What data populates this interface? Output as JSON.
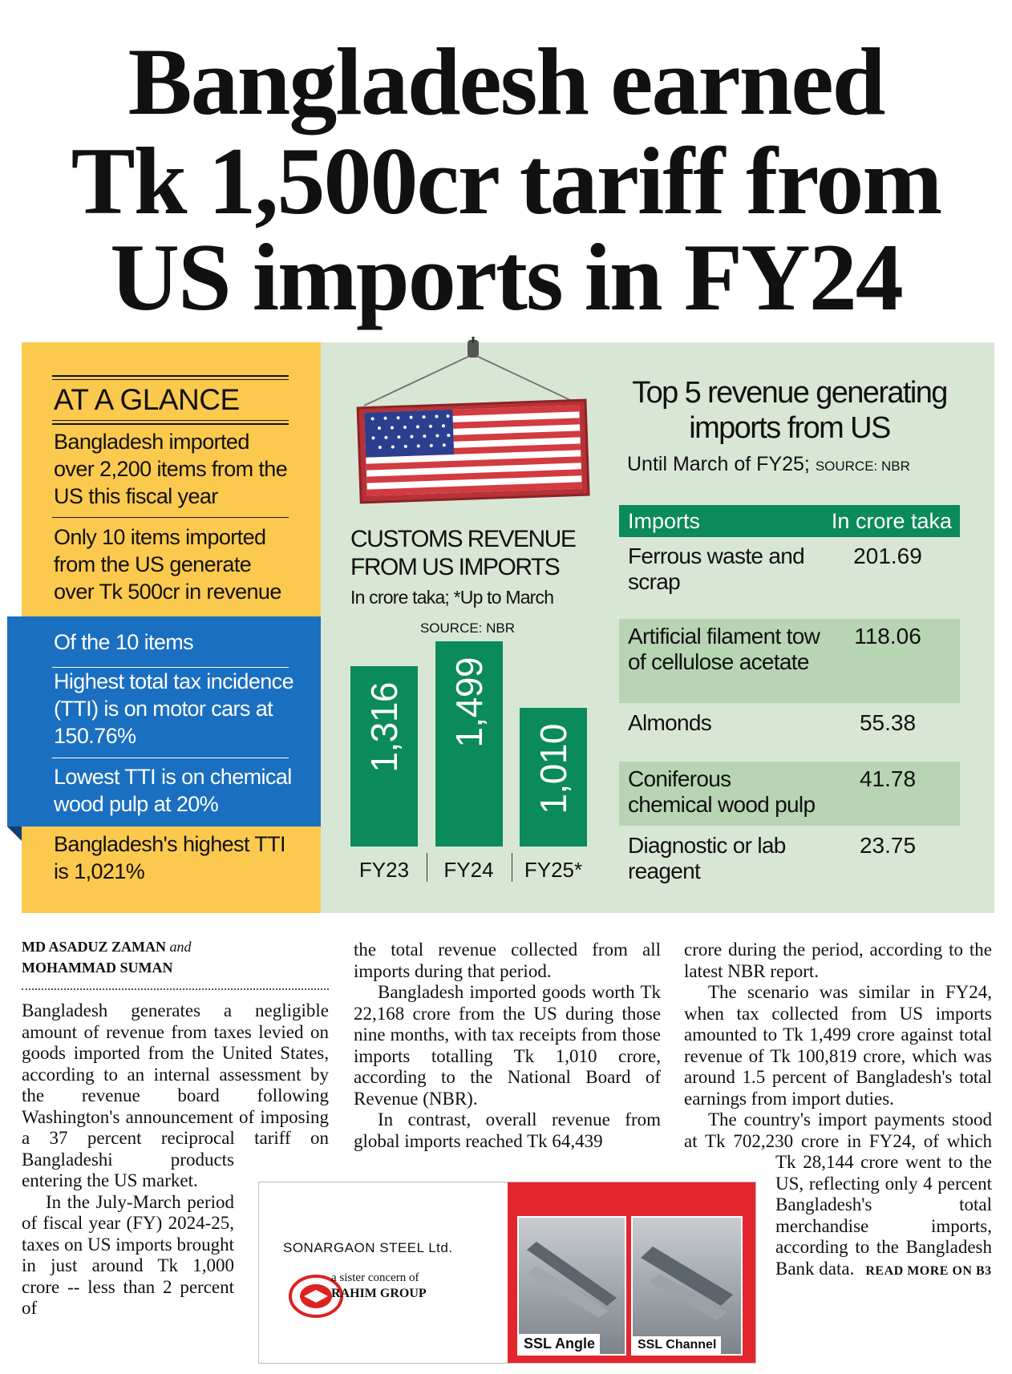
{
  "headline": {
    "lines": [
      "Bangladesh earned",
      "Tk 1,500cr tariff from",
      "US imports in FY24"
    ]
  },
  "at_a_glance": {
    "heading": "AT A GLANCE",
    "items": [
      "Bangladesh imported over 2,200 items from the US this fiscal year",
      "Only 10 items imported from the US generate over Tk 500cr in revenue"
    ],
    "sub_heading": "Of the 10 items",
    "sub_items": [
      "Highest total tax incidence (TTI) is on motor cars at 150.76%",
      "Lowest TTI is on chemical wood pulp at 20%"
    ],
    "footer": "Bangladesh's highest TTI is 1,021%"
  },
  "chart_data": {
    "type": "bar",
    "title": "CUSTOMS REVENUE FROM US IMPORTS",
    "subtitle": "In crore taka; *Up to March",
    "source": "SOURCE: NBR",
    "categories": [
      "FY23",
      "FY24",
      "FY25*"
    ],
    "values": [
      1316,
      1499,
      1010
    ],
    "value_labels": [
      "1,316",
      "1,499",
      "1,010"
    ],
    "color": "#0b8a5c"
  },
  "top_imports": {
    "title": "Top 5 revenue generating imports from US",
    "subtitle": "Until March of FY25;",
    "source": "SOURCE: NBR",
    "header": [
      "Imports",
      "In crore taka"
    ],
    "rows": [
      [
        "Ferrous waste and scrap",
        "201.69"
      ],
      [
        "Artificial filament tow of cellulose acetate",
        "118.06"
      ],
      [
        "Almonds",
        "55.38"
      ],
      [
        "Coniferous chemical wood pulp",
        "41.78"
      ],
      [
        "Diagnostic or lab reagent",
        "23.75"
      ]
    ]
  },
  "article": {
    "byline": {
      "author1": "MD ASADUZ ZAMAN",
      "conjunction": "and",
      "author2": "MOHAMMAD SUMAN"
    },
    "columns": [
      [
        "Bangladesh generates a negligible amount of revenue from taxes levied on goods imported from the United States, according to an internal assessment by the revenue board following Washington's announcement of imposing a 37 percent reciprocal tariff on Bangladeshi products entering the US market.",
        "In the July-March period of fiscal year (FY) 2024-25, taxes on US imports brought in just around Tk 1,000 crore -- less than 2 percent of"
      ],
      [
        "the total revenue collected from all imports during that period.",
        "Bangladesh imported goods worth Tk 22,168 crore from the US during those nine months, with tax receipts from those imports totalling Tk 1,010 crore, according to the National Board of Revenue (NBR).",
        "In contrast, overall revenue from global imports reached Tk 64,439"
      ],
      [
        "crore during the period, according to the latest NBR report.",
        "The scenario was similar in FY24, when tax collected from US imports amounted to Tk 1,499 crore against total revenue of Tk 100,819 crore, which was around 1.5 percent of Bangladesh's total earnings from import duties.",
        "The country's import payments stood at Tk 702,230 crore in FY24, of which Tk 28,144 crore went to the US, reflecting only 4 percent Bangladesh's total merchandise imports, according to the Bangladesh Bank data."
      ]
    ],
    "continued": "READ MORE ON B3"
  },
  "ad": {
    "brand": "SONARGAON STEEL Ltd.",
    "tagline": "a sister concern of",
    "group": "RAHIM GROUP",
    "products": [
      "SSL Angle",
      "SSL Channel"
    ]
  }
}
